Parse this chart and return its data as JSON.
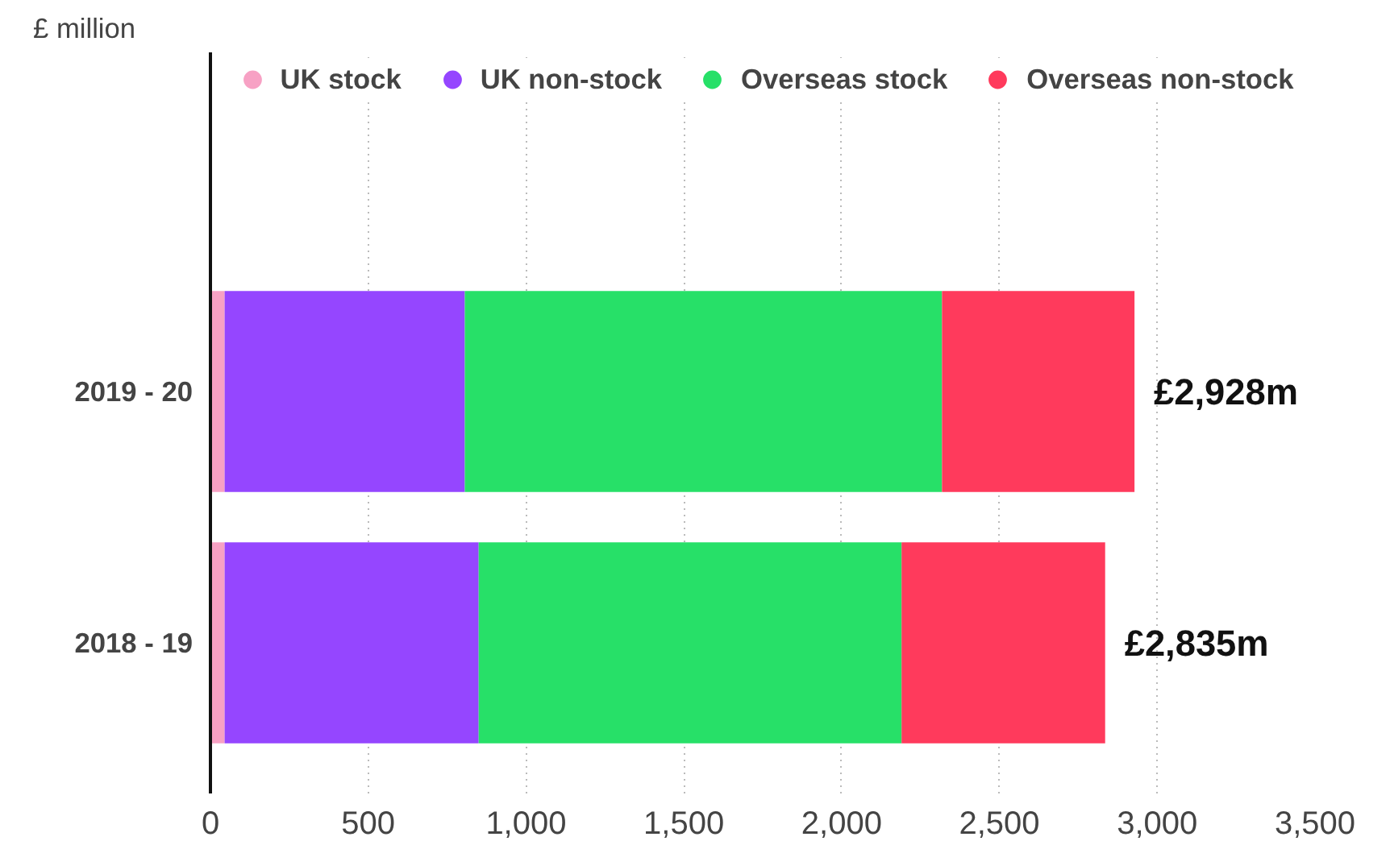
{
  "chart_data": {
    "type": "bar",
    "orientation": "horizontal",
    "stacked": true,
    "ylabel": "£ million",
    "categories": [
      "2019 - 20",
      "2018 - 19"
    ],
    "series": [
      {
        "name": "UK stock",
        "color": "#f7a1c4",
        "values": [
          45,
          45
        ]
      },
      {
        "name": "UK non-stock",
        "color": "#9546ff",
        "values": [
          761,
          805
        ]
      },
      {
        "name": "Overseas stock",
        "color": "#27e068",
        "values": [
          1512,
          1340
        ]
      },
      {
        "name": "Overseas non-stock",
        "color": "#ff3a5c",
        "values": [
          610,
          645
        ]
      }
    ],
    "totals": [
      "£2,928m",
      "£2,835m"
    ],
    "xlim": [
      0,
      3500
    ],
    "xticks": [
      0,
      500,
      {
        "value": 1000,
        "label": "1,000"
      },
      {
        "value": 1500,
        "label": "1,500"
      },
      {
        "value": 2000,
        "label": "2,000"
      },
      {
        "value": 2500,
        "label": "2,500"
      },
      {
        "value": 3000,
        "label": "3,000"
      },
      {
        "value": 3500,
        "label": "3,500"
      }
    ],
    "grid": "x",
    "legend": "top"
  }
}
